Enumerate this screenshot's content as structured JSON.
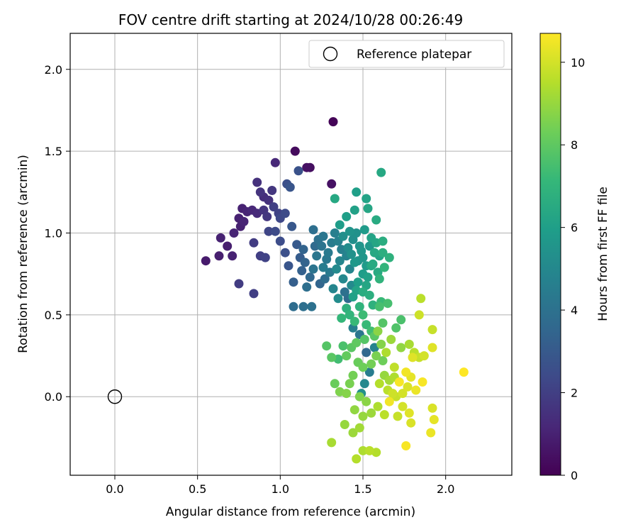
{
  "chart_data": {
    "type": "scatter",
    "title": "FOV centre drift starting at 2024/10/28 00:26:49",
    "xlabel": "Angular distance from reference (arcmin)",
    "ylabel": "Rotation from reference (arcmin)",
    "xlim": [
      -0.27,
      2.4
    ],
    "ylim": [
      -0.48,
      2.22
    ],
    "x_ticks": [
      0.0,
      0.5,
      1.0,
      1.5,
      2.0
    ],
    "x_tick_labels": [
      "0.0",
      "0.5",
      "1.0",
      "1.5",
      "2.0"
    ],
    "y_ticks": [
      0.0,
      0.5,
      1.0,
      1.5,
      2.0
    ],
    "y_tick_labels": [
      "0.0",
      "0.5",
      "1.0",
      "1.5",
      "2.0"
    ],
    "grid": true,
    "legend": {
      "placement": "top-right",
      "entries": [
        {
          "label": "Reference platepar",
          "marker": "open-circle"
        }
      ]
    },
    "reference_point": {
      "label": "Reference platepar",
      "x": 0.0,
      "y": 0.0
    },
    "colorbar": {
      "label": "Hours from first FF file",
      "colormap": "viridis",
      "range": [
        0,
        10.7
      ],
      "ticks": [
        0,
        2,
        4,
        6,
        8,
        10
      ],
      "tick_labels": [
        "0",
        "2",
        "4",
        "6",
        "8",
        "10"
      ]
    },
    "series": [
      {
        "columns": [
          "x",
          "y",
          "hours"
        ],
        "points": [
          [
            1.32,
            1.68,
            0.1
          ],
          [
            1.09,
            1.5,
            0.3
          ],
          [
            1.16,
            1.4,
            0.5
          ],
          [
            1.18,
            1.4,
            0.4
          ],
          [
            1.31,
            1.3,
            0.5
          ],
          [
            0.97,
            1.43,
            1.2
          ],
          [
            0.86,
            1.31,
            1.5
          ],
          [
            0.88,
            1.25,
            1.6
          ],
          [
            0.9,
            1.22,
            1.4
          ],
          [
            0.95,
            1.26,
            1.7
          ],
          [
            0.93,
            1.2,
            1.5
          ],
          [
            0.77,
            1.15,
            1.0
          ],
          [
            0.8,
            1.13,
            1.1
          ],
          [
            0.83,
            1.14,
            1.2
          ],
          [
            0.86,
            1.12,
            1.3
          ],
          [
            0.75,
            1.09,
            1.0
          ],
          [
            0.78,
            1.07,
            1.1
          ],
          [
            0.76,
            1.04,
            1.0
          ],
          [
            0.72,
            1.0,
            1.1
          ],
          [
            0.64,
            0.97,
            1.0
          ],
          [
            0.68,
            0.92,
            0.9
          ],
          [
            0.55,
            0.83,
            0.8
          ],
          [
            0.63,
            0.86,
            0.9
          ],
          [
            0.71,
            0.86,
            1.0
          ],
          [
            0.9,
            1.14,
            1.6
          ],
          [
            0.92,
            1.1,
            1.7
          ],
          [
            0.96,
            1.16,
            2.0
          ],
          [
            0.99,
            1.12,
            2.1
          ],
          [
            1.0,
            1.09,
            2.3
          ],
          [
            1.03,
            1.12,
            2.4
          ],
          [
            1.04,
            1.3,
            2.6
          ],
          [
            1.11,
            1.38,
            2.7
          ],
          [
            1.06,
            1.28,
            2.8
          ],
          [
            0.84,
            0.94,
            1.9
          ],
          [
            0.88,
            0.86,
            2.0
          ],
          [
            0.91,
            0.85,
            2.1
          ],
          [
            0.93,
            1.01,
            2.2
          ],
          [
            0.97,
            1.01,
            2.4
          ],
          [
            1.0,
            0.95,
            2.5
          ],
          [
            1.03,
            0.88,
            2.6
          ],
          [
            1.05,
            0.8,
            2.8
          ],
          [
            1.07,
            1.04,
            2.9
          ],
          [
            1.1,
            0.93,
            3.0
          ],
          [
            1.12,
            0.85,
            3.1
          ],
          [
            1.08,
            0.7,
            3.2
          ],
          [
            1.13,
            0.77,
            3.3
          ],
          [
            1.15,
            0.82,
            3.4
          ],
          [
            0.75,
            0.69,
            1.9
          ],
          [
            0.84,
            0.63,
            2.0
          ],
          [
            1.08,
            0.55,
            3.8
          ],
          [
            1.14,
            0.55,
            3.9
          ],
          [
            1.19,
            0.55,
            4.0
          ],
          [
            1.2,
            1.02,
            3.9
          ],
          [
            1.23,
            0.96,
            4.0
          ],
          [
            1.25,
            0.92,
            4.1
          ],
          [
            1.22,
            0.86,
            4.2
          ],
          [
            1.28,
            0.84,
            4.3
          ],
          [
            1.3,
            0.76,
            4.4
          ],
          [
            1.26,
            0.79,
            4.5
          ],
          [
            1.33,
            1.0,
            4.6
          ],
          [
            1.35,
            0.95,
            4.7
          ],
          [
            1.37,
            0.9,
            4.6
          ],
          [
            1.4,
            0.86,
            4.8
          ],
          [
            1.42,
            0.78,
            4.9
          ],
          [
            1.38,
            0.72,
            5.0
          ],
          [
            1.43,
            0.68,
            5.1
          ],
          [
            1.32,
            0.66,
            4.9
          ],
          [
            1.35,
            0.6,
            5.2
          ],
          [
            1.44,
            0.96,
            5.3
          ],
          [
            1.46,
            1.0,
            5.4
          ],
          [
            1.48,
            0.92,
            5.5
          ],
          [
            1.5,
            0.85,
            5.6
          ],
          [
            1.45,
            0.82,
            5.7
          ],
          [
            1.52,
            0.8,
            5.8
          ],
          [
            1.5,
            0.75,
            5.9
          ],
          [
            1.47,
            0.7,
            6.0
          ],
          [
            1.53,
            0.73,
            6.1
          ],
          [
            1.55,
            0.97,
            6.2
          ],
          [
            1.58,
            0.94,
            6.3
          ],
          [
            1.57,
            0.88,
            6.4
          ],
          [
            1.6,
            0.86,
            6.2
          ],
          [
            1.56,
            0.81,
            6.5
          ],
          [
            1.46,
            1.25,
            6.0
          ],
          [
            1.52,
            1.21,
            6.2
          ],
          [
            1.53,
            1.15,
            6.3
          ],
          [
            1.45,
            1.14,
            6.1
          ],
          [
            1.4,
            1.1,
            6.0
          ],
          [
            1.33,
            1.21,
            6.4
          ],
          [
            1.36,
            1.05,
            5.9
          ],
          [
            1.58,
            1.08,
            6.5
          ],
          [
            1.61,
            1.37,
            6.4
          ],
          [
            1.63,
            0.79,
            7.0
          ],
          [
            1.6,
            0.72,
            6.9
          ],
          [
            1.5,
            0.64,
            6.6
          ],
          [
            1.54,
            0.62,
            6.7
          ],
          [
            1.56,
            0.56,
            6.8
          ],
          [
            1.48,
            0.55,
            6.9
          ],
          [
            1.42,
            0.5,
            7.0
          ],
          [
            1.4,
            0.54,
            6.8
          ],
          [
            1.37,
            0.48,
            7.1
          ],
          [
            1.45,
            0.46,
            7.2
          ],
          [
            1.5,
            0.5,
            7.3
          ],
          [
            1.52,
            0.44,
            7.2
          ],
          [
            1.55,
            0.4,
            7.4
          ],
          [
            1.6,
            0.55,
            7.5
          ],
          [
            1.61,
            0.58,
            7.2
          ],
          [
            1.65,
            0.57,
            7.5
          ],
          [
            1.73,
            0.47,
            7.6
          ],
          [
            1.7,
            0.42,
            7.7
          ],
          [
            1.62,
            0.45,
            7.8
          ],
          [
            1.57,
            0.37,
            7.9
          ],
          [
            1.51,
            0.35,
            7.8
          ],
          [
            1.46,
            0.33,
            8.0
          ],
          [
            1.43,
            0.3,
            7.9
          ],
          [
            1.4,
            0.25,
            8.1
          ],
          [
            1.38,
            0.31,
            7.6
          ],
          [
            1.35,
            0.23,
            7.4
          ],
          [
            1.28,
            0.31,
            7.8
          ],
          [
            1.31,
            0.24,
            7.9
          ],
          [
            1.47,
            0.21,
            8.2
          ],
          [
            1.5,
            0.18,
            8.3
          ],
          [
            1.55,
            0.2,
            8.4
          ],
          [
            1.58,
            0.25,
            8.5
          ],
          [
            1.62,
            0.22,
            8.3
          ],
          [
            1.44,
            0.13,
            8.4
          ],
          [
            1.42,
            0.08,
            8.5
          ],
          [
            1.33,
            0.08,
            8.2
          ],
          [
            1.36,
            0.03,
            8.6
          ],
          [
            1.4,
            0.02,
            8.7
          ],
          [
            1.48,
            0.0,
            8.6
          ],
          [
            1.52,
            -0.03,
            8.8
          ],
          [
            1.45,
            -0.08,
            8.9
          ],
          [
            1.5,
            -0.12,
            9.0
          ],
          [
            1.55,
            -0.1,
            9.1
          ],
          [
            1.48,
            -0.19,
            9.2
          ],
          [
            1.39,
            -0.17,
            9.0
          ],
          [
            1.44,
            -0.22,
            9.1
          ],
          [
            1.31,
            -0.28,
            9.3
          ],
          [
            1.5,
            -0.33,
            9.4
          ],
          [
            1.58,
            -0.34,
            9.5
          ],
          [
            1.54,
            -0.33,
            9.6
          ],
          [
            1.46,
            -0.38,
            9.5
          ],
          [
            1.63,
            0.13,
            9.0
          ],
          [
            1.66,
            0.1,
            9.2
          ],
          [
            1.69,
            0.12,
            9.4
          ],
          [
            1.65,
            0.04,
            9.6
          ],
          [
            1.7,
            0.0,
            9.8
          ],
          [
            1.74,
            0.02,
            10.0
          ],
          [
            1.77,
            0.06,
            10.1
          ],
          [
            1.79,
            0.12,
            10.3
          ],
          [
            1.82,
            0.04,
            10.4
          ],
          [
            1.74,
            -0.06,
            10.0
          ],
          [
            1.78,
            -0.1,
            10.2
          ],
          [
            1.71,
            -0.12,
            9.8
          ],
          [
            1.63,
            -0.11,
            9.6
          ],
          [
            1.59,
            -0.06,
            9.4
          ],
          [
            1.73,
            0.3,
            8.9
          ],
          [
            1.78,
            0.32,
            9.3
          ],
          [
            1.81,
            0.27,
            9.6
          ],
          [
            1.84,
            0.24,
            9.8
          ],
          [
            1.87,
            0.25,
            10.0
          ],
          [
            1.92,
            0.3,
            10.2
          ],
          [
            1.85,
            0.6,
            9.6
          ],
          [
            1.92,
            0.41,
            9.8
          ],
          [
            1.84,
            0.5,
            9.9
          ],
          [
            1.92,
            -0.07,
            10.1
          ],
          [
            1.93,
            -0.14,
            10.3
          ],
          [
            1.91,
            -0.22,
            10.4
          ],
          [
            1.79,
            -0.16,
            10.1
          ],
          [
            1.76,
            -0.3,
            10.6
          ],
          [
            2.11,
            0.15,
            10.7
          ],
          [
            1.8,
            0.24,
            10.2
          ],
          [
            1.69,
            0.18,
            9.7
          ],
          [
            1.64,
            0.27,
            9.4
          ],
          [
            1.67,
            0.35,
            9.1
          ],
          [
            1.59,
            0.4,
            8.8
          ],
          [
            1.61,
            0.32,
            8.7
          ],
          [
            1.6,
            0.08,
            9.5
          ],
          [
            1.68,
            0.02,
            9.9
          ],
          [
            1.66,
            -0.03,
            10.5
          ],
          [
            1.72,
            0.09,
            10.6
          ],
          [
            1.76,
            0.15,
            10.5
          ],
          [
            1.86,
            0.09,
            10.6
          ],
          [
            1.52,
            0.27,
            3.6
          ],
          [
            1.48,
            0.38,
            4.2
          ],
          [
            1.54,
            0.15,
            4.5
          ],
          [
            1.57,
            0.3,
            4.8
          ],
          [
            1.44,
            0.42,
            4.6
          ],
          [
            1.51,
            0.08,
            5.0
          ],
          [
            1.49,
            0.02,
            5.3
          ],
          [
            1.41,
            0.6,
            3.7
          ],
          [
            1.39,
            0.64,
            4.0
          ],
          [
            1.27,
            0.72,
            3.8
          ],
          [
            1.24,
            0.69,
            3.5
          ],
          [
            1.18,
            0.73,
            3.6
          ],
          [
            1.16,
            0.67,
            3.9
          ],
          [
            1.2,
            0.78,
            4.1
          ],
          [
            1.29,
            0.88,
            4.4
          ],
          [
            1.31,
            0.94,
            4.5
          ],
          [
            1.21,
            0.92,
            3.7
          ],
          [
            1.14,
            0.9,
            3.4
          ],
          [
            1.26,
            0.98,
            4.2
          ],
          [
            1.62,
            0.95,
            6.6
          ],
          [
            1.62,
            0.88,
            6.7
          ],
          [
            1.66,
            0.85,
            6.8
          ],
          [
            1.55,
            0.8,
            6.4
          ],
          [
            1.59,
            0.76,
            6.5
          ],
          [
            1.52,
            0.68,
            6.3
          ],
          [
            1.46,
            0.65,
            6.2
          ],
          [
            1.44,
            0.61,
            6.1
          ],
          [
            1.36,
            0.83,
            4.9
          ],
          [
            1.34,
            0.78,
            5.1
          ],
          [
            1.41,
            0.91,
            5.2
          ],
          [
            1.43,
            0.87,
            5.4
          ],
          [
            1.47,
            0.83,
            5.5
          ],
          [
            1.49,
            0.89,
            5.6
          ],
          [
            1.54,
            0.92,
            5.7
          ],
          [
            1.51,
            1.02,
            5.8
          ],
          [
            1.42,
            1.01,
            5.5
          ],
          [
            1.38,
            0.98,
            5.3
          ]
        ]
      }
    ]
  }
}
